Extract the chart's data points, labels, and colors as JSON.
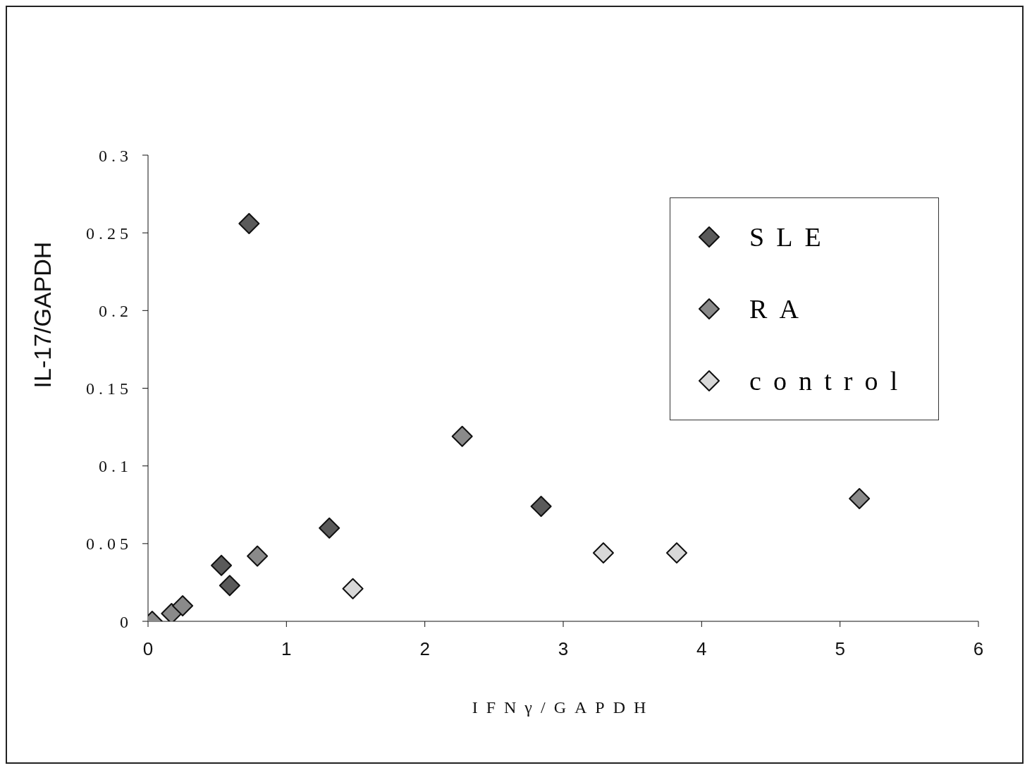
{
  "chart_data": {
    "type": "scatter",
    "xlabel": "IFNγ/GAPDH",
    "ylabel": "IL-17/GAPDH",
    "series": [
      {
        "name": "SLE",
        "color": "#5a5a5a",
        "x": [
          0.53,
          0.59,
          0.73,
          1.31,
          2.84
        ],
        "values": [
          0.036,
          0.023,
          0.256,
          0.06,
          0.074
        ]
      },
      {
        "name": "RA",
        "color": "#8a8a8a",
        "x": [
          0.03,
          0.17,
          0.25,
          0.79,
          2.27,
          5.14
        ],
        "values": [
          0.0,
          0.005,
          0.01,
          0.042,
          0.119,
          0.079
        ]
      },
      {
        "name": "control",
        "color": "#d8d8d8",
        "x": [
          1.48,
          3.29,
          3.82
        ],
        "values": [
          0.021,
          0.044,
          0.044
        ]
      }
    ],
    "xlim": [
      0,
      6
    ],
    "xticks": [
      0,
      1,
      2,
      3,
      4,
      5,
      6
    ],
    "ylim": [
      0,
      0.3
    ],
    "yticks": [
      0,
      0.05,
      0.1,
      0.15,
      0.2,
      0.25,
      0.3
    ],
    "marker": "diamond",
    "legend": "top right",
    "grid": false
  }
}
